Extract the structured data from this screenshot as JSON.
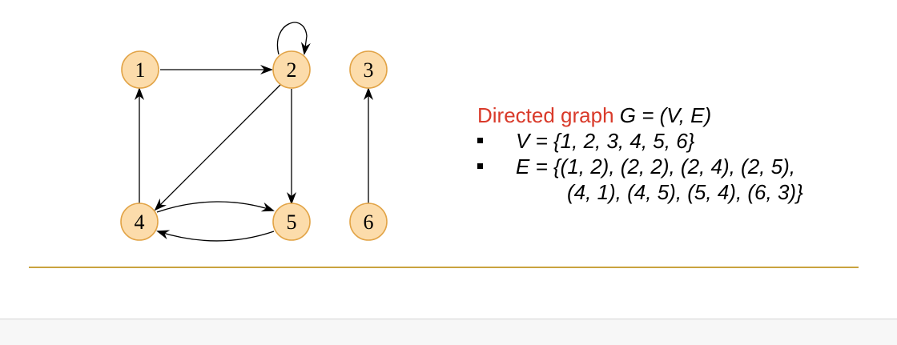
{
  "graph": {
    "vertices": [
      "1",
      "2",
      "3",
      "4",
      "5",
      "6"
    ],
    "edges": [
      [
        "1",
        "2"
      ],
      [
        "2",
        "2"
      ],
      [
        "2",
        "4"
      ],
      [
        "2",
        "5"
      ],
      [
        "4",
        "1"
      ],
      [
        "4",
        "5"
      ],
      [
        "5",
        "4"
      ],
      [
        "6",
        "3"
      ]
    ],
    "colors": {
      "node_fill": "#fcdcab",
      "node_stroke": "#e2a447",
      "edge": "#000000"
    }
  },
  "definition": {
    "title": "Directed graph",
    "formula": "G = (V, E)",
    "vertex_set": "V = {1, 2, 3, 4, 5, 6}",
    "edge_set_line1": "E = {(1, 2), (2, 2), (2, 4), (2, 5),",
    "edge_set_line2": "(4, 1), (4, 5), (5, 4), (6, 3)}"
  },
  "colors": {
    "title": "#d93a2a",
    "divider": "#c9a33f"
  }
}
